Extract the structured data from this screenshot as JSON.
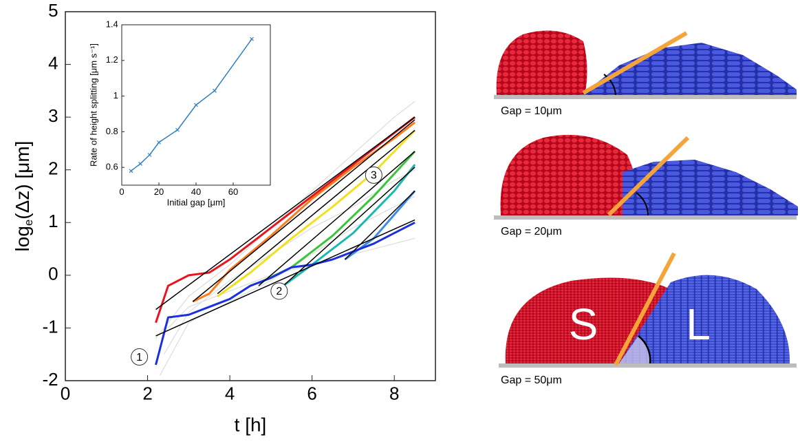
{
  "chart_data": [
    {
      "type": "line",
      "xlabel": "t [h]",
      "ylabel": [
        "log",
        "e",
        "(Δz) [μm]"
      ],
      "xlim": [
        0,
        9
      ],
      "ylim": [
        -2,
        5
      ],
      "xticks": [
        0,
        2,
        4,
        6,
        8
      ],
      "yticks": [
        -2,
        -1,
        0,
        1,
        2,
        3,
        4,
        5
      ],
      "series": [
        {
          "color": "#dcdcdc",
          "x": [
            2.2,
            3,
            4,
            5,
            6,
            7,
            8,
            8.5
          ],
          "values": [
            -1.2,
            -0.4,
            0.2,
            0.9,
            1.6,
            2.3,
            3.0,
            3.3
          ]
        },
        {
          "color": "#dcdcdc",
          "x": [
            2.3,
            3,
            4,
            5,
            6,
            7,
            8,
            8.5
          ],
          "values": [
            -1.9,
            -0.9,
            -0.5,
            -0.1,
            0.4,
            0.9,
            1.3,
            1.5
          ]
        },
        {
          "color": "#dcdcdc",
          "x": [
            2.4,
            3,
            4,
            5,
            6,
            7,
            8,
            8.5
          ],
          "values": [
            -1.5,
            -0.7,
            -0.1,
            0.4,
            0.9,
            1.3,
            1.8,
            2.0
          ]
        },
        {
          "color": "#dcdcdc",
          "x": [
            2.5,
            3,
            4,
            5,
            6,
            7,
            8,
            8.5
          ],
          "values": [
            -1.0,
            -0.6,
            -0.3,
            0.0,
            0.2,
            0.4,
            0.6,
            0.7
          ]
        },
        {
          "color": "#e8141e",
          "x": [
            2.2,
            2.5,
            3,
            3.5,
            4,
            4.5,
            5,
            5.5,
            6,
            6.5,
            7,
            7.5,
            8,
            8.5
          ],
          "values": [
            -0.9,
            -0.2,
            0.0,
            0.05,
            0.3,
            0.6,
            0.9,
            1.2,
            1.5,
            1.8,
            2.1,
            2.4,
            2.7,
            3.0
          ]
        },
        {
          "color": "#ff7a1a",
          "x": [
            3.1,
            3.5,
            4,
            5,
            6,
            7,
            8,
            8.5
          ],
          "values": [
            -0.5,
            -0.35,
            0.1,
            0.75,
            1.45,
            2.05,
            2.6,
            2.9
          ]
        },
        {
          "color": "#f0e020",
          "x": [
            3.7,
            4.5,
            5.5,
            6.5,
            7.5,
            8.5
          ],
          "values": [
            -0.4,
            0.05,
            0.7,
            1.3,
            1.95,
            2.75
          ]
        },
        {
          "color": "#39c43a",
          "x": [
            4.7,
            5.5,
            6.5,
            7.5,
            8.5
          ],
          "values": [
            -0.15,
            0.15,
            0.75,
            1.5,
            2.35
          ]
        },
        {
          "color": "#1ab8b0",
          "x": [
            5.3,
            6,
            7,
            8,
            8.5
          ],
          "values": [
            -0.2,
            0.2,
            0.8,
            1.6,
            2.1
          ]
        },
        {
          "color": "#3a8ee6",
          "x": [
            6.8,
            7.5,
            8.5
          ],
          "values": [
            0.3,
            0.7,
            1.6
          ]
        },
        {
          "color": "#1a2fe0",
          "x": [
            2.2,
            2.5,
            3,
            3.5,
            4,
            4.5,
            5,
            5.5,
            6,
            6.5,
            7,
            7.5,
            8,
            8.5
          ],
          "values": [
            -1.7,
            -0.8,
            -0.75,
            -0.6,
            -0.45,
            -0.2,
            -0.05,
            0.15,
            0.2,
            0.3,
            0.45,
            0.6,
            0.8,
            1.0
          ]
        },
        {
          "color": "#000000",
          "x": [
            2.2,
            8.5
          ],
          "values": [
            -0.65,
            3.0
          ]
        },
        {
          "color": "#000000",
          "x": [
            3.1,
            8.5
          ],
          "values": [
            -0.5,
            2.95
          ]
        },
        {
          "color": "#000000",
          "x": [
            3.7,
            8.5
          ],
          "values": [
            -0.35,
            2.75
          ]
        },
        {
          "color": "#000000",
          "x": [
            4.7,
            8.5
          ],
          "values": [
            -0.2,
            2.35
          ]
        },
        {
          "color": "#000000",
          "x": [
            5.3,
            8.5
          ],
          "values": [
            -0.2,
            2.05
          ]
        },
        {
          "color": "#000000",
          "x": [
            6.8,
            8.5
          ],
          "values": [
            0.3,
            1.6
          ]
        },
        {
          "color": "#000000",
          "x": [
            2.2,
            8.5
          ],
          "values": [
            -1.15,
            1.05
          ]
        }
      ],
      "annotations": [
        {
          "text": "1",
          "x": 1.8,
          "y": -1.55
        },
        {
          "text": "2",
          "x": 5.2,
          "y": -0.3
        },
        {
          "text": "3",
          "x": 7.5,
          "y": 1.9
        }
      ]
    },
    {
      "type": "line",
      "xlabel": "Initial gap [μm]",
      "ylabel": "Rate of height splitting [μm s⁻¹]",
      "xlim": [
        0,
        80
      ],
      "ylim": [
        0.5,
        1.4
      ],
      "xticks": [
        0,
        20,
        40,
        60
      ],
      "yticks": [
        0.6,
        0.8,
        1,
        1.2,
        1.4
      ],
      "series": [
        {
          "color": "#2f7fc1",
          "x": [
            5,
            10,
            15,
            20,
            30,
            40,
            50,
            70
          ],
          "values": [
            0.58,
            0.62,
            0.67,
            0.74,
            0.81,
            0.95,
            1.03,
            1.32
          ]
        }
      ]
    }
  ],
  "panels": [
    {
      "caption": "Gap = 10μm"
    },
    {
      "caption": "Gap = 20μm"
    },
    {
      "caption": "Gap = 50μm",
      "labels": [
        "S",
        "L"
      ]
    }
  ]
}
